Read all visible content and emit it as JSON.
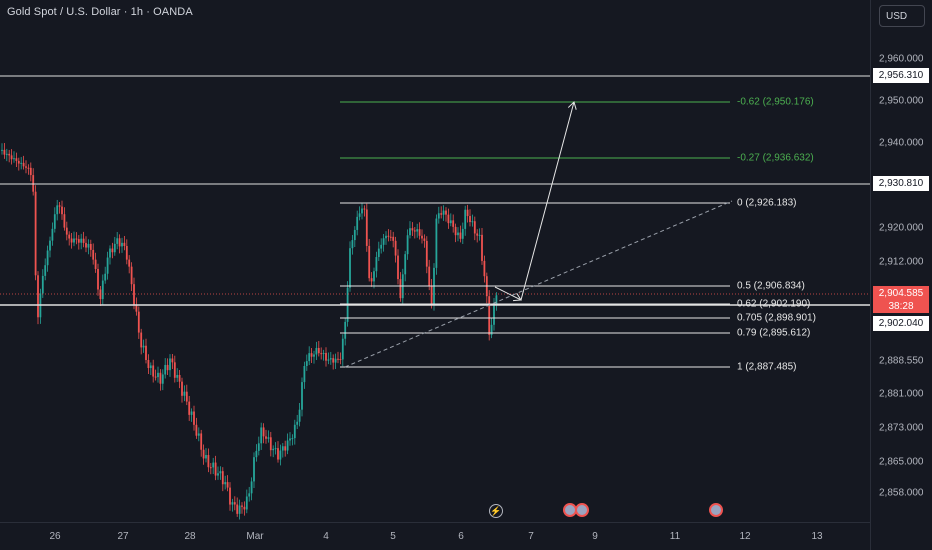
{
  "header": {
    "title": "Gold Spot / U.S. Dollar · 1h · OANDA"
  },
  "currency_button": {
    "label": "USD"
  },
  "price_axis": {
    "ticks": [
      "2,960.000",
      "2,950.000",
      "2,940.000",
      "2,920.000",
      "2,912.000",
      "2,888.550",
      "2,881.000",
      "2,873.000",
      "2,865.000",
      "2,858.000"
    ],
    "level_labels": {
      "upper": "2,956.310",
      "resistance": "2,930.810",
      "current_price": "2,904.585",
      "countdown": "38:28",
      "support": "2,902.040"
    }
  },
  "time_axis": {
    "ticks": [
      "26",
      "27",
      "28",
      "Mar",
      "4",
      "5",
      "6",
      "7",
      "9",
      "11",
      "12",
      "13"
    ]
  },
  "fib_levels": [
    {
      "label": "-0.62 (2,950.176)",
      "color": "#4caf50"
    },
    {
      "label": "-0.27 (2,936.632)",
      "color": "#4caf50"
    },
    {
      "label": "0 (2,926.183)",
      "color": "#e6e6e6"
    },
    {
      "label": "0.5 (2,906.834)",
      "color": "#e6e6e6"
    },
    {
      "label": "0.62 (2,902.190)",
      "color": "#e6e6e6"
    },
    {
      "label": "0.705 (2,898.901)",
      "color": "#e6e6e6"
    },
    {
      "label": "0.79 (2,895.612)",
      "color": "#e6e6e6"
    },
    {
      "label": "1 (2,887.485)",
      "color": "#e6e6e6"
    }
  ],
  "events": [
    {
      "icon": "lightning-icon"
    },
    {
      "icon": "us-flag-icon"
    },
    {
      "icon": "us-flag-icon"
    },
    {
      "icon": "us-flag-icon"
    }
  ],
  "colors": {
    "background": "#151821",
    "bull": "#26a69a",
    "bear": "#ef5350",
    "current_price_badge": "#ef5350",
    "fib_extension": "#4caf50"
  }
}
